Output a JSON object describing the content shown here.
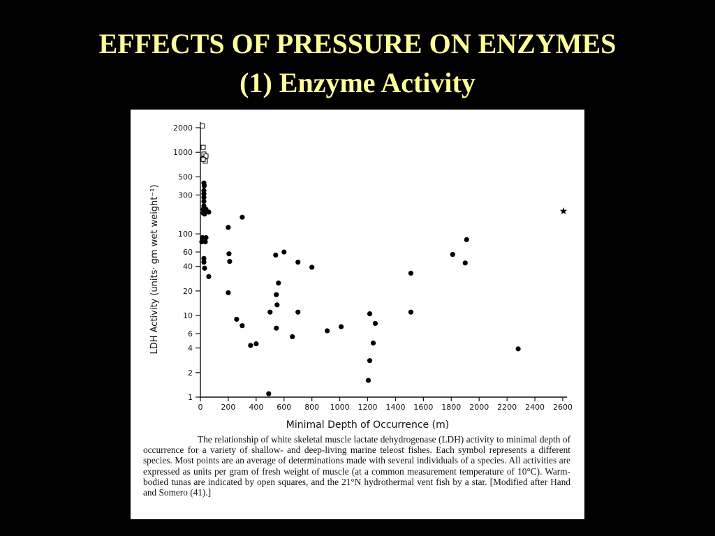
{
  "slide": {
    "title_line1": "EFFECTS OF PRESSURE ON ENZYMES",
    "title_line2": "(1)  Enzyme Activity",
    "title_color": "#ffff99",
    "background": "#000000"
  },
  "caption": "The relationship of white skeletal muscle lactate dehydrogenase (LDH) activity to minimal depth of occurrence for a variety of shallow- and deep-living marine teleost fishes. Each symbol represents a different species. Most points are an average of determinations made with several individuals of a species. All activities are expressed as units per gram of fresh weight of muscle (at a common measurement temperature of 10°C). Warm-bodied tunas are indicated by open squares, and the 21°N hydrothermal vent fish by a star. [Modified after Hand and Somero (41).]",
  "chart_data": {
    "type": "scatter",
    "title": "",
    "xlabel": "Minimal Depth of Occurrence (m)",
    "ylabel": "LDH Activity (units· gm wet weight⁻¹)",
    "xlim": [
      0,
      2600
    ],
    "ylim": [
      1,
      2000
    ],
    "y_scale": "log",
    "grid": false,
    "x_ticks": [
      0,
      200,
      400,
      600,
      800,
      1000,
      1200,
      1400,
      1600,
      1800,
      2000,
      2200,
      2400,
      2600
    ],
    "x_tick_labels": [
      "0",
      "200",
      "400",
      "600",
      "800",
      "1000",
      "1200",
      "1400",
      "1600",
      "1800",
      "2000",
      "2200",
      "2400",
      "2600"
    ],
    "y_ticks": [
      1,
      2,
      4,
      6,
      10,
      20,
      40,
      60,
      100,
      300,
      500,
      1000,
      2000
    ],
    "y_tick_labels": [
      "1",
      "2",
      "4",
      "6",
      "10",
      "20",
      "40",
      "60",
      "100",
      "300",
      "500",
      "1000",
      "2000"
    ],
    "series": [
      {
        "marker": "filled-circle",
        "points": [
          [
            20,
            850
          ],
          [
            25,
            420
          ],
          [
            28,
            390
          ],
          [
            25,
            340
          ],
          [
            25,
            310
          ],
          [
            25,
            280
          ],
          [
            25,
            250
          ],
          [
            25,
            220
          ],
          [
            20,
            200
          ],
          [
            30,
            195
          ],
          [
            40,
            200
          ],
          [
            60,
            185
          ],
          [
            20,
            180
          ],
          [
            30,
            175
          ],
          [
            15,
            90
          ],
          [
            40,
            90
          ],
          [
            10,
            80
          ],
          [
            35,
            80
          ],
          [
            25,
            50
          ],
          [
            25,
            45
          ],
          [
            30,
            38
          ],
          [
            60,
            30
          ],
          [
            200,
            120
          ],
          [
            205,
            57
          ],
          [
            210,
            46
          ],
          [
            200,
            19
          ],
          [
            300,
            160
          ],
          [
            260,
            9
          ],
          [
            300,
            7.5
          ],
          [
            360,
            4.3
          ],
          [
            400,
            4.5
          ],
          [
            490,
            1.1
          ],
          [
            500,
            11
          ],
          [
            540,
            55
          ],
          [
            545,
            18
          ],
          [
            550,
            13.5
          ],
          [
            545,
            7
          ],
          [
            560,
            25
          ],
          [
            600,
            60
          ],
          [
            700,
            45
          ],
          [
            700,
            11
          ],
          [
            660,
            5.5
          ],
          [
            800,
            39
          ],
          [
            910,
            6.5
          ],
          [
            1010,
            7.3
          ],
          [
            1205,
            1.6
          ],
          [
            1215,
            2.8
          ],
          [
            1215,
            10.5
          ],
          [
            1240,
            4.6
          ],
          [
            1255,
            8
          ],
          [
            1510,
            33
          ],
          [
            1510,
            11
          ],
          [
            1810,
            56
          ],
          [
            1900,
            44
          ],
          [
            1910,
            85
          ],
          [
            2280,
            3.9
          ]
        ]
      },
      {
        "marker": "open-square",
        "points": [
          [
            15,
            2100
          ],
          [
            20,
            1150
          ],
          [
            25,
            950
          ],
          [
            40,
            900
          ],
          [
            35,
            780
          ],
          [
            20,
            820
          ]
        ]
      },
      {
        "marker": "star",
        "points": [
          [
            2605,
            190
          ]
        ]
      }
    ]
  }
}
